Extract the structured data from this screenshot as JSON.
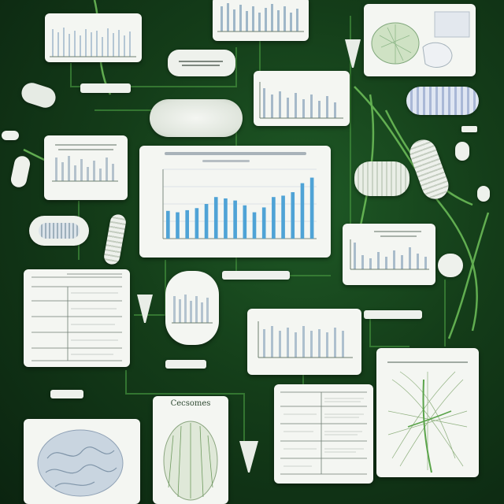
{
  "palette": {
    "background": "#143d19",
    "card": "#f4f6f2",
    "bar": "#4fa3d6",
    "vine": "#5aa44a"
  },
  "main_chart": {
    "type": "bar",
    "values": [
      40,
      38,
      41,
      44,
      50,
      60,
      58,
      55,
      48,
      38,
      45,
      60,
      62,
      67,
      80,
      88
    ]
  },
  "captions": {
    "specimen_card": "Cecsomes"
  }
}
